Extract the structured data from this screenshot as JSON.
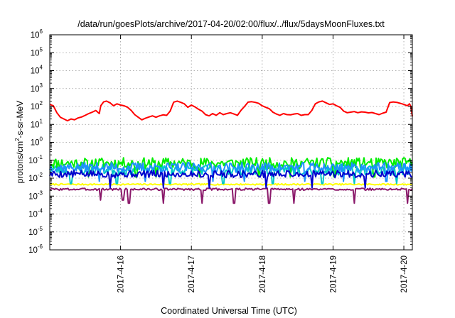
{
  "chart_data": {
    "type": "line",
    "title": "/data/run/goesPlots/archive/2017-04-20/02:00/flux/../flux/5daysMoonFluxes.txt",
    "xlabel": "Coordinated Universal Time (UTC)",
    "ylabel": {
      "pre": "protons/cm",
      "sup": "2",
      "post": "-s-sr-MeV"
    },
    "yscale": "log",
    "ylim_exp": [
      -6,
      6
    ],
    "y_ticks": [
      {
        "base": "10",
        "exp": "6"
      },
      {
        "base": "10",
        "exp": "5"
      },
      {
        "base": "10",
        "exp": "4"
      },
      {
        "base": "10",
        "exp": "3"
      },
      {
        "base": "10",
        "exp": "2"
      },
      {
        "base": "10",
        "exp": "1"
      },
      {
        "base": "10",
        "exp": "0"
      },
      {
        "base": "10",
        "exp": "-1"
      },
      {
        "base": "10",
        "exp": "-2"
      },
      {
        "base": "10",
        "exp": "-3"
      },
      {
        "base": "10",
        "exp": "-4"
      },
      {
        "base": "10",
        "exp": "-5"
      },
      {
        "base": "10",
        "exp": "-6"
      }
    ],
    "x_range_days": [
      15.0,
      20.12
    ],
    "x_ticks": [
      {
        "label": "2017-4-16",
        "day": 16
      },
      {
        "label": "2017-4-17",
        "day": 17
      },
      {
        "label": "2017-4-18",
        "day": 18
      },
      {
        "label": "2017-4-19",
        "day": 19
      },
      {
        "label": "2017-4-20",
        "day": 20
      }
    ],
    "grid": true,
    "series": [
      {
        "color": "#ff0000",
        "points": [
          [
            15.0,
            130
          ],
          [
            15.05,
            110
          ],
          [
            15.1,
            45
          ],
          [
            15.15,
            25
          ],
          [
            15.2,
            20
          ],
          [
            15.25,
            16
          ],
          [
            15.3,
            20
          ],
          [
            15.35,
            18
          ],
          [
            15.4,
            23
          ],
          [
            15.45,
            26
          ],
          [
            15.5,
            32
          ],
          [
            15.55,
            40
          ],
          [
            15.6,
            48
          ],
          [
            15.65,
            60
          ],
          [
            15.7,
            40
          ],
          [
            15.72,
            110
          ],
          [
            15.76,
            180
          ],
          [
            15.8,
            200
          ],
          [
            15.85,
            160
          ],
          [
            15.9,
            110
          ],
          [
            15.95,
            140
          ],
          [
            16.0,
            120
          ],
          [
            16.05,
            110
          ],
          [
            16.1,
            90
          ],
          [
            16.15,
            60
          ],
          [
            16.2,
            35
          ],
          [
            16.25,
            25
          ],
          [
            16.3,
            18
          ],
          [
            16.35,
            22
          ],
          [
            16.4,
            26
          ],
          [
            16.45,
            30
          ],
          [
            16.5,
            25
          ],
          [
            16.55,
            30
          ],
          [
            16.6,
            34
          ],
          [
            16.65,
            32
          ],
          [
            16.7,
            55
          ],
          [
            16.75,
            175
          ],
          [
            16.8,
            200
          ],
          [
            16.85,
            170
          ],
          [
            16.9,
            140
          ],
          [
            16.95,
            90
          ],
          [
            17.0,
            120
          ],
          [
            17.05,
            95
          ],
          [
            17.1,
            70
          ],
          [
            17.15,
            55
          ],
          [
            17.2,
            35
          ],
          [
            17.25,
            30
          ],
          [
            17.3,
            40
          ],
          [
            17.35,
            32
          ],
          [
            17.4,
            45
          ],
          [
            17.45,
            35
          ],
          [
            17.5,
            40
          ],
          [
            17.55,
            45
          ],
          [
            17.6,
            38
          ],
          [
            17.65,
            32
          ],
          [
            17.7,
            60
          ],
          [
            17.75,
            100
          ],
          [
            17.8,
            175
          ],
          [
            17.85,
            185
          ],
          [
            17.9,
            170
          ],
          [
            17.95,
            150
          ],
          [
            18.0,
            110
          ],
          [
            18.05,
            90
          ],
          [
            18.1,
            75
          ],
          [
            18.15,
            48
          ],
          [
            18.2,
            38
          ],
          [
            18.25,
            32
          ],
          [
            18.3,
            40
          ],
          [
            18.35,
            35
          ],
          [
            18.4,
            34
          ],
          [
            18.45,
            38
          ],
          [
            18.5,
            40
          ],
          [
            18.55,
            32
          ],
          [
            18.6,
            35
          ],
          [
            18.65,
            35
          ],
          [
            18.7,
            60
          ],
          [
            18.75,
            140
          ],
          [
            18.8,
            180
          ],
          [
            18.85,
            200
          ],
          [
            18.9,
            160
          ],
          [
            18.95,
            130
          ],
          [
            19.0,
            140
          ],
          [
            19.05,
            110
          ],
          [
            19.1,
            90
          ],
          [
            19.15,
            55
          ],
          [
            19.2,
            45
          ],
          [
            19.25,
            48
          ],
          [
            19.3,
            52
          ],
          [
            19.35,
            45
          ],
          [
            19.4,
            50
          ],
          [
            19.45,
            48
          ],
          [
            19.5,
            44
          ],
          [
            19.55,
            46
          ],
          [
            19.6,
            40
          ],
          [
            19.65,
            35
          ],
          [
            19.7,
            42
          ],
          [
            19.75,
            48
          ],
          [
            19.8,
            165
          ],
          [
            19.85,
            180
          ],
          [
            19.9,
            170
          ],
          [
            19.95,
            150
          ],
          [
            20.0,
            130
          ],
          [
            20.05,
            110
          ],
          [
            20.08,
            140
          ],
          [
            20.1,
            100
          ],
          [
            20.12,
            28
          ]
        ]
      },
      {
        "color": "#00ee00",
        "center": 0.07,
        "spread": 0.6,
        "seed": 11,
        "spikes": [
          15.55,
          16.22,
          16.5,
          17.12,
          17.95,
          18.4,
          19.02,
          19.58
        ]
      },
      {
        "color": "#00c8c8",
        "center": 0.03,
        "spread": 0.6,
        "seed": 23,
        "spikes": [
          15.3,
          15.95,
          16.7,
          17.45,
          18.15,
          18.85,
          19.3,
          19.9
        ]
      },
      {
        "color": "#1e90ff",
        "center": 0.04,
        "spread": 0.55,
        "seed": 37,
        "spikes": [
          15.7,
          16.35,
          17.3,
          17.75,
          18.6,
          19.15,
          19.75
        ]
      },
      {
        "color": "#0000cd",
        "center": 0.017,
        "spread": 0.4,
        "seed": 5,
        "spikes": [
          15.85,
          16.6,
          17.25,
          18.05,
          18.7,
          19.45
        ]
      },
      {
        "color": "#ffff00",
        "center": 0.0045,
        "spread": 0.08,
        "seed": 7,
        "spikes": []
      },
      {
        "color": "#8b1a6b",
        "center": 0.0024,
        "spread": 0.12,
        "seed": 3,
        "spikes": [
          15.72,
          16.03,
          16.12,
          16.6,
          17.15,
          17.6,
          18.1,
          18.45,
          19.3,
          20.05
        ],
        "dips": [
          15.72,
          16.03
        ]
      }
    ]
  }
}
